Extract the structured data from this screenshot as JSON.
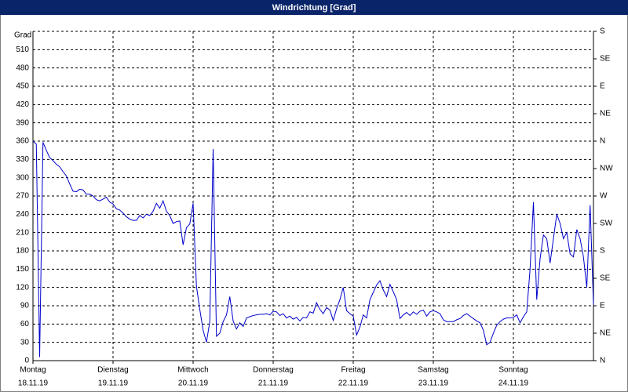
{
  "chart_data": {
    "type": "line",
    "title": "Windrichtung [Grad]",
    "y_label": "Grad",
    "color": "#0000cc",
    "grid": true,
    "xlim": [
      0,
      168
    ],
    "xticks": [
      {
        "value": 0,
        "label": "Montag"
      },
      {
        "value": 24,
        "label": "Dienstag"
      },
      {
        "value": 48,
        "label": "Mittwoch"
      },
      {
        "value": 72,
        "label": "Donnerstag"
      },
      {
        "value": 96,
        "label": "Freitag"
      },
      {
        "value": 120,
        "label": "Samstag"
      },
      {
        "value": 144,
        "label": "Sonntag"
      }
    ],
    "xtick_dates": [
      "18.11.19",
      "19.11.19",
      "20.11.19",
      "21.11.19",
      "22.11.19",
      "23.11.19",
      "24.11.19"
    ],
    "ylim": [
      0,
      540
    ],
    "yticks": [
      0,
      30,
      60,
      90,
      120,
      150,
      180,
      210,
      240,
      270,
      300,
      330,
      360,
      390,
      420,
      450,
      480,
      510
    ],
    "y2lim": [
      0,
      540
    ],
    "y2ticks": [
      {
        "value": 0,
        "label": "N"
      },
      {
        "value": 45,
        "label": "NE"
      },
      {
        "value": 90,
        "label": "E"
      },
      {
        "value": 135,
        "label": "SE"
      },
      {
        "value": 180,
        "label": "S"
      },
      {
        "value": 225,
        "label": "SW"
      },
      {
        "value": 270,
        "label": "W"
      },
      {
        "value": 315,
        "label": "NW"
      },
      {
        "value": 360,
        "label": "N"
      },
      {
        "value": 405,
        "label": "NE"
      },
      {
        "value": 450,
        "label": "E"
      },
      {
        "value": 495,
        "label": "SE"
      },
      {
        "value": 540,
        "label": "S"
      }
    ],
    "x": [
      0,
      1,
      2,
      3,
      4,
      5,
      6,
      7,
      8,
      9,
      10,
      11,
      12,
      13,
      14,
      15,
      16,
      17,
      18,
      19,
      20,
      21,
      22,
      23,
      24,
      25,
      26,
      27,
      28,
      29,
      30,
      31,
      32,
      33,
      34,
      35,
      36,
      37,
      38,
      39,
      40,
      41,
      42,
      43,
      44,
      45,
      46,
      47,
      48,
      49,
      50,
      51,
      52,
      53,
      54,
      55,
      56,
      57,
      58,
      59,
      60,
      61,
      62,
      63,
      64,
      65,
      66,
      67,
      68,
      69,
      70,
      71,
      72,
      73,
      74,
      75,
      76,
      77,
      78,
      79,
      80,
      81,
      82,
      83,
      84,
      85,
      86,
      87,
      88,
      89,
      90,
      91,
      92,
      93,
      94,
      95,
      96,
      97,
      98,
      99,
      100,
      101,
      102,
      103,
      104,
      105,
      106,
      107,
      108,
      109,
      110,
      111,
      112,
      113,
      114,
      115,
      116,
      117,
      118,
      119,
      120,
      121,
      122,
      123,
      124,
      125,
      126,
      127,
      128,
      129,
      130,
      131,
      132,
      133,
      134,
      135,
      136,
      137,
      138,
      139,
      140,
      141,
      142,
      143,
      144,
      145,
      146,
      147,
      148,
      149,
      150,
      151,
      152,
      153,
      154,
      155,
      156,
      157,
      158,
      159,
      160,
      161,
      162,
      163,
      164,
      165,
      166,
      167,
      168
    ],
    "values": [
      360,
      355,
      6,
      358,
      345,
      333,
      328,
      322,
      318,
      310,
      303,
      290,
      278,
      277,
      281,
      280,
      273,
      273,
      270,
      264,
      262,
      265,
      268,
      260,
      257,
      249,
      247,
      242,
      236,
      232,
      230,
      230,
      238,
      234,
      240,
      238,
      245,
      258,
      250,
      262,
      245,
      238,
      225,
      228,
      229,
      190,
      218,
      224,
      258,
      122,
      84,
      50,
      30,
      64,
      347,
      40,
      45,
      64,
      75,
      105,
      65,
      52,
      62,
      56,
      70,
      72,
      74,
      75,
      76,
      76,
      77,
      75,
      81,
      80,
      74,
      77,
      70,
      73,
      68,
      71,
      65,
      71,
      70,
      80,
      78,
      95,
      84,
      77,
      87,
      83,
      66,
      85,
      100,
      120,
      82,
      77,
      73,
      42,
      55,
      75,
      70,
      100,
      112,
      124,
      131,
      116,
      105,
      125,
      113,
      100,
      69,
      75,
      79,
      74,
      80,
      76,
      81,
      83,
      73,
      80,
      82,
      80,
      77,
      67,
      64,
      64,
      64,
      67,
      69,
      74,
      77,
      73,
      69,
      65,
      62,
      50,
      26,
      30,
      45,
      58,
      64,
      68,
      70,
      70,
      71,
      75,
      62,
      72,
      80,
      150,
      260,
      100,
      167,
      206,
      200,
      160,
      200,
      240,
      225,
      200,
      210,
      175,
      170,
      215,
      200,
      170,
      120,
      255,
      92
    ]
  }
}
